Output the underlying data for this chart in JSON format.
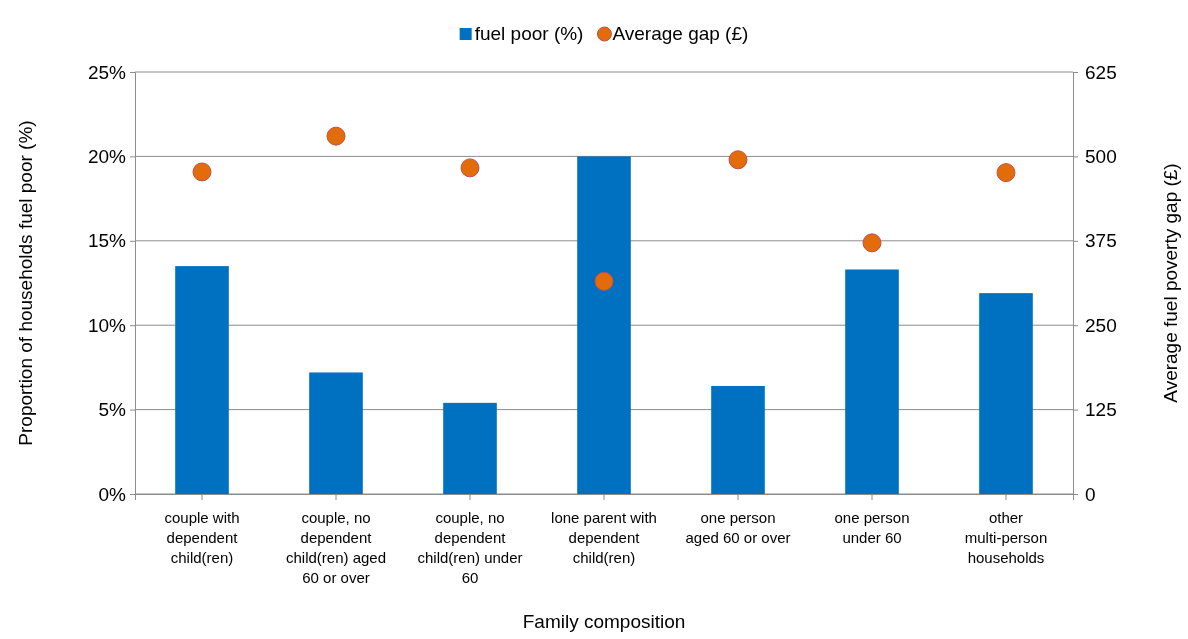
{
  "chart_data": {
    "type": "bar",
    "categories": [
      "couple with dependent child(ren)",
      "couple, no dependent child(ren) aged 60 or over",
      "couple, no dependent child(ren) under 60",
      "lone parent with dependent child(ren)",
      "one person aged 60 or over",
      "one person under 60",
      "other multi-person households"
    ],
    "series": [
      {
        "name": "fuel poor (%)",
        "color": "#0070c0",
        "values": [
          13.5,
          7.2,
          5.4,
          20,
          6.4,
          13.3,
          11.9
        ]
      },
      {
        "name": "Average gap (£)",
        "type": "scatter",
        "axis": "y2",
        "color": "#e36c0a",
        "values": [
          477,
          530,
          483,
          315,
          495,
          372,
          476
        ]
      }
    ],
    "xlabel": "Family composition",
    "ylabel": "Proportion of households fuel poor (%)",
    "y2label": "Average fuel poverty gap (£)",
    "ylim": [
      0,
      25
    ],
    "yticks": [
      {
        "value": 0,
        "label": "0%"
      },
      {
        "value": 5,
        "label": "5%"
      },
      {
        "value": 10,
        "label": "10%"
      },
      {
        "value": 15,
        "label": "15%"
      },
      {
        "value": 20,
        "label": "20%"
      },
      {
        "value": 25,
        "label": "25%"
      }
    ],
    "y2lim": [
      0,
      625
    ],
    "y2ticks": [
      0,
      125,
      250,
      375,
      500,
      625
    ],
    "grid": "y",
    "legend": "top",
    "marker": "circle"
  }
}
